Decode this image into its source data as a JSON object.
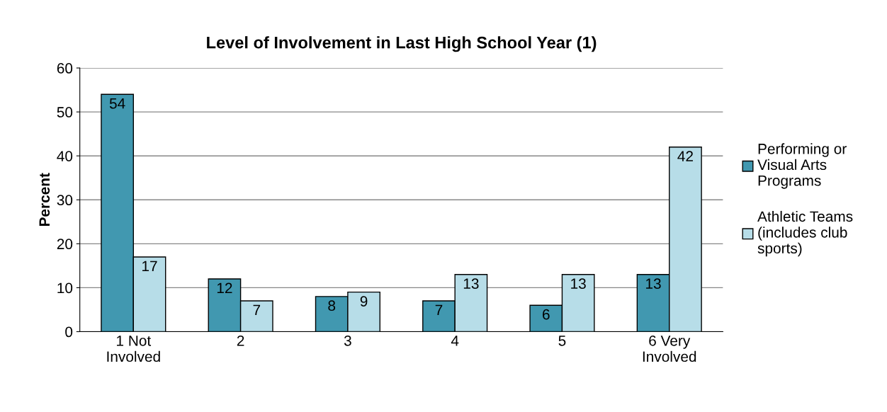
{
  "chart_data": {
    "type": "bar",
    "title": "Level of Involvement in Last High School Year (1)",
    "ylabel": "Percent",
    "categories": [
      "1 Not\nInvolved",
      "2",
      "3",
      "4",
      "5",
      "6 Very\nInvolved"
    ],
    "series": [
      {
        "name": "Performing or\nVisual Arts\nPrograms",
        "color": "#4198b0",
        "values": [
          54,
          12,
          8,
          7,
          6,
          13
        ]
      },
      {
        "name": "Athletic Teams\n(includes club\nsports)",
        "color": "#b7dde8",
        "values": [
          17,
          7,
          9,
          13,
          13,
          42
        ]
      }
    ],
    "ylim": [
      0,
      60
    ],
    "yticks": [
      0,
      10,
      20,
      30,
      40,
      50,
      60
    ],
    "grid": "y",
    "legend": "right",
    "data_labels": true
  }
}
